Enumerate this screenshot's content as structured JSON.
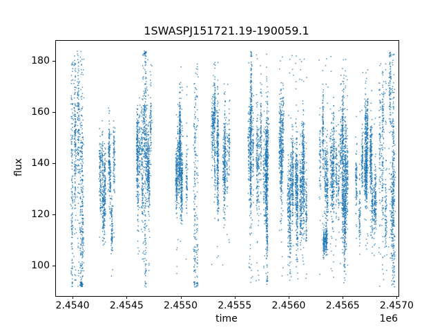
{
  "chart_data": {
    "type": "scatter",
    "title": "1SWASPJ151721.19-190059.1",
    "xlabel": "time",
    "ylabel": "flux",
    "x_offset": "1e6",
    "xlim": [
      2453840,
      2457010
    ],
    "ylim": [
      88.5,
      188.0
    ],
    "grid": false,
    "legend": "none",
    "point_color": "#1f77b4",
    "point_alpha": 0.8,
    "point_size": 1.5,
    "x_ticks": [
      {
        "value": 2454000,
        "label": "2.4540"
      },
      {
        "value": 2454500,
        "label": "2.4545"
      },
      {
        "value": 2455000,
        "label": "2.4550"
      },
      {
        "value": 2455500,
        "label": "2.4555"
      },
      {
        "value": 2456000,
        "label": "2.4560"
      },
      {
        "value": 2456500,
        "label": "2.4565"
      },
      {
        "value": 2457000,
        "label": "2.4570"
      }
    ],
    "y_ticks": [
      {
        "value": 100,
        "label": "100"
      },
      {
        "value": 120,
        "label": "120"
      },
      {
        "value": 140,
        "label": "140"
      },
      {
        "value": 160,
        "label": "160"
      },
      {
        "value": 180,
        "label": "180"
      }
    ],
    "flux_full_range": [
      92,
      184
    ],
    "clusters": [
      {
        "t0": 2453965,
        "t1": 2454105,
        "nights": 10,
        "pts_min": 40,
        "pts_max": 100,
        "mu": 140,
        "night_sigma": 22,
        "sigma": 14,
        "tail_p": 0.22,
        "tail_lo": 92,
        "tail_hi": 184,
        "x_jitter": 5
      },
      {
        "t0": 2454245,
        "t1": 2454400,
        "nights": 12,
        "pts_min": 40,
        "pts_max": 90,
        "mu": 136,
        "night_sigma": 9,
        "sigma": 6,
        "tail_p": 0.02,
        "tail_lo": 108,
        "tail_hi": 158,
        "x_jitter": 4
      },
      {
        "t0": 2454585,
        "t1": 2454720,
        "nights": 13,
        "pts_min": 40,
        "pts_max": 90,
        "mu": 141,
        "night_sigma": 9,
        "sigma": 7,
        "tail_p": 0.05,
        "tail_lo": 98,
        "tail_hi": 182,
        "x_jitter": 4
      },
      {
        "t0": 2454640,
        "t1": 2454670,
        "nights": 3,
        "pts_min": 60,
        "pts_max": 90,
        "mu": 140,
        "night_sigma": 25,
        "sigma": 22,
        "tail_p": 0.45,
        "tail_lo": 93,
        "tail_hi": 183,
        "x_jitter": 5
      },
      {
        "t0": 2454940,
        "t1": 2455065,
        "nights": 12,
        "pts_min": 40,
        "pts_max": 90,
        "mu": 142,
        "night_sigma": 8,
        "sigma": 6.5,
        "tail_p": 0.05,
        "tail_lo": 96,
        "tail_hi": 180,
        "x_jitter": 4
      },
      {
        "t0": 2455120,
        "t1": 2455160,
        "nights": 3,
        "pts_min": 50,
        "pts_max": 80,
        "mu": 138,
        "night_sigma": 20,
        "sigma": 20,
        "tail_p": 0.5,
        "tail_lo": 95,
        "tail_hi": 180,
        "x_jitter": 5
      },
      {
        "t0": 2455280,
        "t1": 2455450,
        "nights": 14,
        "pts_min": 40,
        "pts_max": 90,
        "mu": 140,
        "night_sigma": 9,
        "sigma": 7,
        "tail_p": 0.06,
        "tail_lo": 100,
        "tail_hi": 181,
        "x_jitter": 4
      },
      {
        "t0": 2455610,
        "t1": 2455805,
        "nights": 18,
        "pts_min": 50,
        "pts_max": 110,
        "mu": 138,
        "night_sigma": 12,
        "sigma": 9,
        "tail_p": 0.07,
        "tail_lo": 93,
        "tail_hi": 183,
        "x_jitter": 4
      },
      {
        "t0": 2455905,
        "t1": 2456160,
        "nights": 22,
        "pts_min": 50,
        "pts_max": 110,
        "mu": 137,
        "night_sigma": 11,
        "sigma": 8,
        "tail_p": 0.06,
        "tail_lo": 95,
        "tail_hi": 183,
        "x_jitter": 4
      },
      {
        "t0": 2456280,
        "t1": 2456540,
        "nights": 22,
        "pts_min": 50,
        "pts_max": 110,
        "mu": 137,
        "night_sigma": 10,
        "sigma": 8,
        "tail_p": 0.07,
        "tail_lo": 95,
        "tail_hi": 183,
        "x_jitter": 4
      },
      {
        "t0": 2456320,
        "t1": 2456355,
        "nights": 2,
        "pts_min": 80,
        "pts_max": 120,
        "mu": 110,
        "night_sigma": 2,
        "sigma": 2.5,
        "tail_p": 0.0,
        "tail_lo": 104,
        "tail_hi": 116,
        "x_jitter": 4
      },
      {
        "t0": 2456600,
        "t1": 2456810,
        "nights": 16,
        "pts_min": 50,
        "pts_max": 100,
        "mu": 137,
        "night_sigma": 7,
        "sigma": 6,
        "tail_p": 0.04,
        "tail_lo": 100,
        "tail_hi": 178,
        "x_jitter": 4
      },
      {
        "t0": 2456830,
        "t1": 2456985,
        "nights": 10,
        "pts_min": 50,
        "pts_max": 100,
        "mu": 138,
        "night_sigma": 14,
        "sigma": 10,
        "tail_p": 0.25,
        "tail_lo": 92,
        "tail_hi": 184,
        "x_jitter": 5
      }
    ]
  }
}
